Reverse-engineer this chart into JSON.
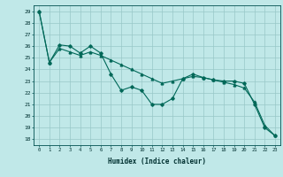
{
  "xlabel": "Humidex (Indice chaleur)",
  "background_color": "#c0e8e8",
  "grid_color": "#98c8c8",
  "line_color": "#006858",
  "xlim": [
    -0.5,
    23.5
  ],
  "ylim": [
    17.5,
    29.5
  ],
  "yticks": [
    18,
    19,
    20,
    21,
    22,
    23,
    24,
    25,
    26,
    27,
    28,
    29
  ],
  "xticks": [
    0,
    1,
    2,
    3,
    4,
    5,
    6,
    7,
    8,
    9,
    10,
    11,
    12,
    13,
    14,
    15,
    16,
    17,
    18,
    19,
    20,
    21,
    22,
    23
  ],
  "line1_x": [
    0,
    1,
    2,
    3,
    4,
    5,
    6,
    7,
    8,
    9,
    10,
    11,
    12,
    13,
    14,
    15,
    16,
    17,
    18,
    19,
    20,
    21,
    22,
    23
  ],
  "line1_y": [
    29.0,
    24.6,
    26.1,
    26.0,
    25.4,
    26.0,
    25.4,
    23.6,
    22.2,
    22.5,
    22.2,
    21.0,
    21.0,
    21.5,
    23.2,
    23.6,
    23.3,
    23.1,
    23.0,
    23.0,
    22.8,
    21.0,
    19.0,
    18.3
  ],
  "line2_x": [
    0,
    1,
    2,
    3,
    4,
    5,
    6,
    7,
    8,
    9,
    10,
    11,
    12,
    13,
    14,
    15,
    16,
    17,
    18,
    19,
    20,
    21,
    22,
    23
  ],
  "line2_y": [
    29.0,
    24.6,
    25.8,
    25.5,
    25.2,
    25.5,
    25.2,
    24.8,
    24.4,
    24.0,
    23.6,
    23.2,
    22.8,
    23.0,
    23.2,
    23.4,
    23.3,
    23.1,
    22.9,
    22.7,
    22.4,
    21.2,
    19.2,
    18.3
  ]
}
